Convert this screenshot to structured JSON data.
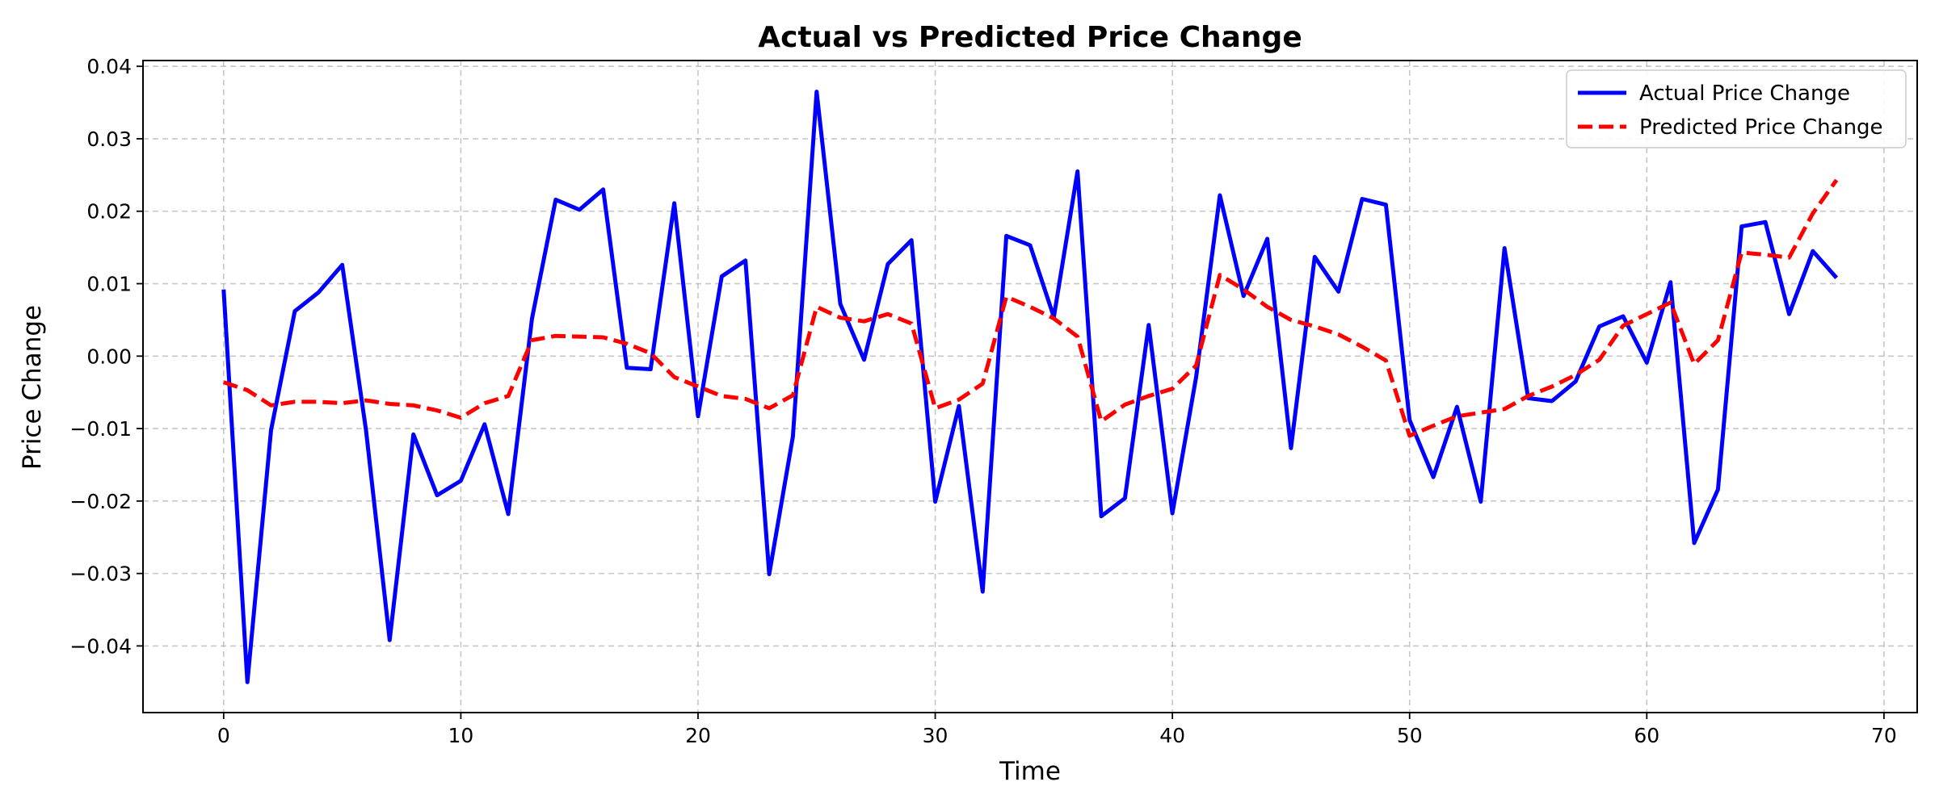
{
  "chart_data": {
    "type": "line",
    "title": "Actual vs Predicted Price Change",
    "xlabel": "Time",
    "ylabel": "Price Change",
    "xlim": [
      -3.4,
      71.4
    ],
    "ylim": [
      -0.0492,
      0.0408
    ],
    "xticks": [
      0,
      10,
      20,
      30,
      40,
      50,
      60,
      70
    ],
    "yticks": [
      -0.04,
      -0.03,
      -0.02,
      -0.01,
      0.0,
      0.01,
      0.02,
      0.03,
      0.04
    ],
    "xtick_labels": [
      "0",
      "10",
      "20",
      "30",
      "40",
      "50",
      "60",
      "70"
    ],
    "ytick_labels": [
      "−0.04",
      "−0.03",
      "−0.02",
      "−0.01",
      "0.00",
      "0.01",
      "0.02",
      "0.03",
      "0.04"
    ],
    "grid": true,
    "legend_position": "top-right",
    "x": [
      0,
      1,
      2,
      3,
      4,
      5,
      6,
      7,
      8,
      9,
      10,
      11,
      12,
      13,
      14,
      15,
      16,
      17,
      18,
      19,
      20,
      21,
      22,
      23,
      24,
      25,
      26,
      27,
      28,
      29,
      30,
      31,
      32,
      33,
      34,
      35,
      36,
      37,
      38,
      39,
      40,
      41,
      42,
      43,
      44,
      45,
      46,
      47,
      48,
      49,
      50,
      51,
      52,
      53,
      54,
      55,
      56,
      57,
      58,
      59,
      60,
      61,
      62,
      63,
      64,
      65,
      66,
      67,
      68
    ],
    "series": [
      {
        "name": "Actual Price Change",
        "color": "#0000ff",
        "style": "solid",
        "values": [
          0.0092,
          -0.045,
          -0.0102,
          0.0062,
          0.0088,
          0.0126,
          -0.0102,
          -0.0392,
          -0.0108,
          -0.0192,
          -0.0172,
          -0.0094,
          -0.0218,
          0.0052,
          0.0216,
          0.0202,
          0.023,
          -0.0016,
          -0.0018,
          0.0211,
          -0.0083,
          0.011,
          0.0132,
          -0.0301,
          -0.0111,
          0.0365,
          0.0072,
          -0.0005,
          0.0127,
          0.016,
          -0.0201,
          -0.0069,
          -0.0325,
          0.0166,
          0.0153,
          0.0054,
          0.0255,
          -0.0221,
          -0.0196,
          0.0043,
          -0.0217,
          -0.0029,
          0.0222,
          0.0083,
          0.0162,
          -0.0127,
          0.0137,
          0.0089,
          0.0217,
          0.0209,
          -0.0088,
          -0.0167,
          -0.007,
          -0.0201,
          0.0149,
          -0.0058,
          -0.0062,
          -0.0035,
          0.0041,
          0.0055,
          -0.0009,
          0.0102,
          -0.0258,
          -0.0184,
          0.0179,
          0.0185,
          0.0058,
          0.0145,
          0.0108
        ]
      },
      {
        "name": "Predicted Price Change",
        "color": "#ff0000",
        "style": "dashed",
        "values": [
          -0.0036,
          -0.0047,
          -0.0068,
          -0.0063,
          -0.0063,
          -0.0065,
          -0.0061,
          -0.0066,
          -0.0068,
          -0.0075,
          -0.0085,
          -0.0065,
          -0.0055,
          0.0022,
          0.0028,
          0.0027,
          0.0026,
          0.0017,
          0.0004,
          -0.0029,
          -0.0042,
          -0.0055,
          -0.0059,
          -0.0072,
          -0.0054,
          0.0068,
          0.0053,
          0.0048,
          0.0058,
          0.0045,
          -0.0072,
          -0.006,
          -0.0038,
          0.0082,
          0.0068,
          0.0052,
          0.0027,
          -0.009,
          -0.0067,
          -0.0055,
          -0.0045,
          -0.0013,
          0.0112,
          0.0092,
          0.0068,
          0.005,
          0.0041,
          0.003,
          0.0013,
          -0.0006,
          -0.011,
          -0.0096,
          -0.0083,
          -0.0078,
          -0.0073,
          -0.0055,
          -0.0042,
          -0.0026,
          -0.0005,
          0.0042,
          0.0058,
          0.0074,
          -0.0011,
          0.0022,
          0.0143,
          0.014,
          0.0136,
          0.0197,
          0.0243
        ]
      }
    ]
  }
}
